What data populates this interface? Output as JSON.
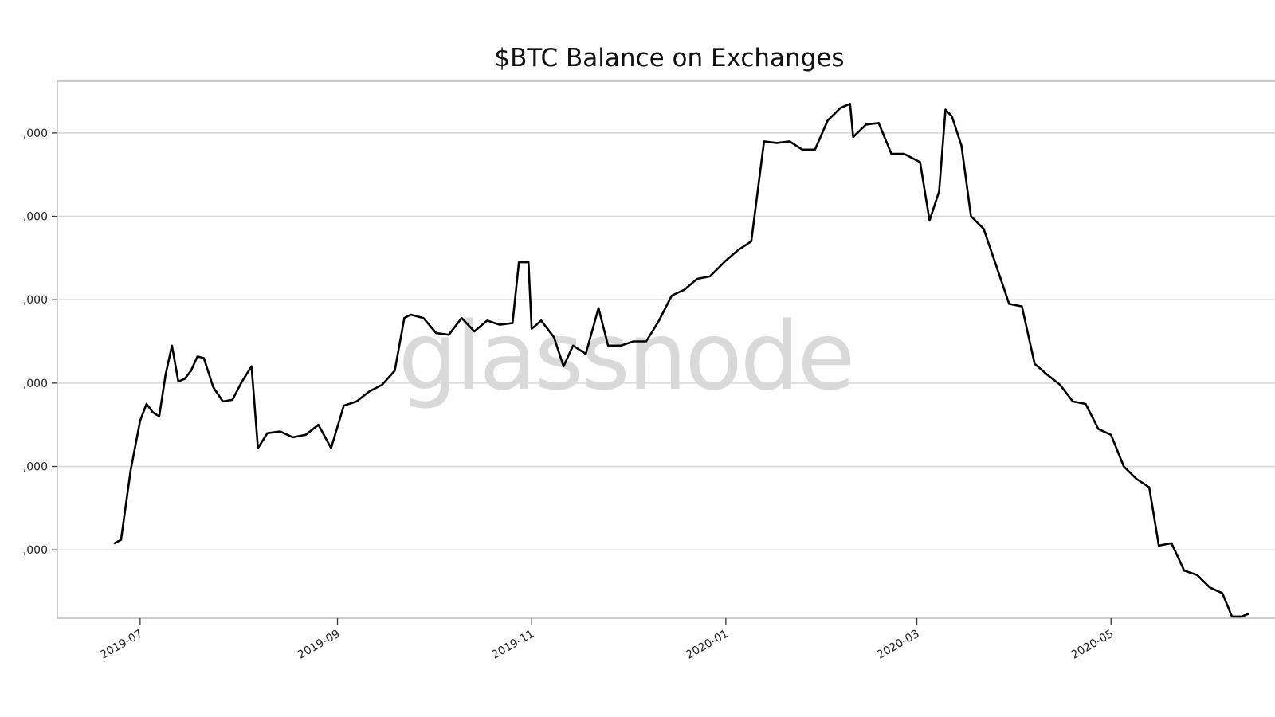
{
  "chart_data": {
    "type": "line",
    "title": "$BTC Balance on Exchanges",
    "watermark": "glassnode",
    "xlabel": "",
    "ylabel": "",
    "x_tick_labels": [
      "2019-07",
      "2019-09",
      "2019-11",
      "2020-01",
      "2020-03",
      "2020-05"
    ],
    "y_tick_labels": [
      ",000",
      ",000",
      ",000",
      ",000",
      ",000",
      ",000"
    ],
    "y_tick_values": [
      1,
      2,
      3,
      4,
      5,
      6
    ],
    "ylim": [
      0.18,
      6.62
    ],
    "xlim": [
      "2019-06-05",
      "2020-06-14"
    ],
    "grid": "horizontal",
    "colors": {
      "line": "#000000",
      "grid": "#d7d7d7",
      "axes": "#cccccc"
    },
    "series": [
      {
        "x": [
          "2019-06-23",
          "2019-06-25",
          "2019-06-28",
          "2019-07-01",
          "2019-07-03",
          "2019-07-05",
          "2019-07-07",
          "2019-07-09",
          "2019-07-11",
          "2019-07-13",
          "2019-07-15",
          "2019-07-17",
          "2019-07-19",
          "2019-07-21",
          "2019-07-24",
          "2019-07-27",
          "2019-07-30",
          "2019-08-02",
          "2019-08-05",
          "2019-08-07",
          "2019-08-10",
          "2019-08-14",
          "2019-08-18",
          "2019-08-22",
          "2019-08-26",
          "2019-08-30",
          "2019-09-03",
          "2019-09-07",
          "2019-09-11",
          "2019-09-15",
          "2019-09-19",
          "2019-09-22",
          "2019-09-24",
          "2019-09-28",
          "2019-10-02",
          "2019-10-06",
          "2019-10-10",
          "2019-10-14",
          "2019-10-18",
          "2019-10-22",
          "2019-10-26",
          "2019-10-28",
          "2019-10-31",
          "2019-11-01",
          "2019-11-04",
          "2019-11-08",
          "2019-11-11",
          "2019-11-14",
          "2019-11-18",
          "2019-11-22",
          "2019-11-25",
          "2019-11-29",
          "2019-12-03",
          "2019-12-07",
          "2019-12-11",
          "2019-12-15",
          "2019-12-19",
          "2019-12-23",
          "2019-12-27",
          "2020-01-01",
          "2020-01-05",
          "2020-01-09",
          "2020-01-13",
          "2020-01-17",
          "2020-01-21",
          "2020-01-25",
          "2020-01-29",
          "2020-02-02",
          "2020-02-06",
          "2020-02-09",
          "2020-02-10",
          "2020-02-14",
          "2020-02-18",
          "2020-02-22",
          "2020-02-26",
          "2020-03-02",
          "2020-03-05",
          "2020-03-08",
          "2020-03-10",
          "2020-03-12",
          "2020-03-15",
          "2020-03-18",
          "2020-03-22",
          "2020-03-26",
          "2020-03-30",
          "2020-04-03",
          "2020-04-07",
          "2020-04-11",
          "2020-04-15",
          "2020-04-19",
          "2020-04-23",
          "2020-04-27",
          "2020-05-01",
          "2020-05-05",
          "2020-05-09",
          "2020-05-13",
          "2020-05-16",
          "2020-05-20",
          "2020-05-24",
          "2020-05-28",
          "2020-06-01",
          "2020-06-05",
          "2020-06-08",
          "2020-06-11",
          "2020-06-13"
        ],
        "values": [
          1.08,
          1.12,
          1.95,
          2.55,
          2.75,
          2.65,
          2.6,
          3.1,
          3.45,
          3.02,
          3.05,
          3.15,
          3.32,
          3.3,
          2.95,
          2.78,
          2.8,
          3.02,
          3.2,
          2.22,
          2.4,
          2.42,
          2.35,
          2.38,
          2.5,
          2.22,
          2.73,
          2.78,
          2.9,
          2.98,
          3.15,
          3.78,
          3.82,
          3.78,
          3.6,
          3.58,
          3.78,
          3.62,
          3.75,
          3.7,
          3.72,
          4.45,
          4.45,
          3.65,
          3.75,
          3.55,
          3.2,
          3.45,
          3.35,
          3.9,
          3.45,
          3.45,
          3.5,
          3.5,
          3.75,
          4.05,
          4.12,
          4.25,
          4.28,
          4.47,
          4.6,
          4.7,
          5.9,
          5.88,
          5.9,
          5.8,
          5.8,
          6.15,
          6.3,
          6.35,
          5.95,
          6.1,
          6.12,
          5.75,
          5.75,
          5.65,
          4.95,
          5.3,
          6.28,
          6.2,
          5.85,
          5.0,
          4.85,
          4.4,
          3.95,
          3.92,
          3.23,
          3.1,
          2.98,
          2.78,
          2.75,
          2.45,
          2.38,
          2.0,
          1.85,
          1.75,
          1.05,
          1.08,
          0.75,
          0.7,
          0.55,
          0.48,
          0.2,
          0.2,
          0.23
        ]
      }
    ]
  }
}
